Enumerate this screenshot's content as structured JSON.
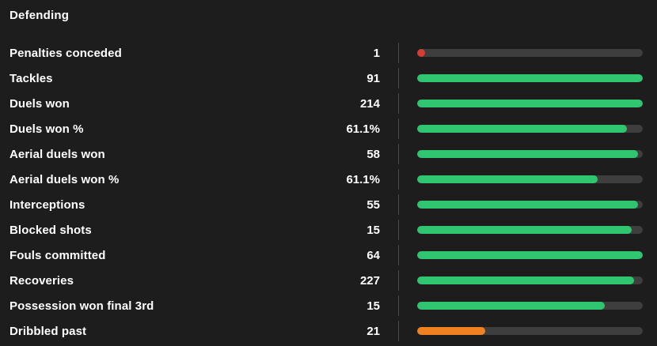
{
  "card": {
    "title": "Defending",
    "rows": [
      {
        "label": "Penalties conceded",
        "value": "1",
        "pct": 3.5,
        "color": "negative"
      },
      {
        "label": "Tackles",
        "value": "91",
        "pct": 100,
        "color": "positive"
      },
      {
        "label": "Duels won",
        "value": "214",
        "pct": 100,
        "color": "positive"
      },
      {
        "label": "Duels won %",
        "value": "61.1%",
        "pct": 93,
        "color": "positive"
      },
      {
        "label": "Aerial duels won",
        "value": "58",
        "pct": 98,
        "color": "positive"
      },
      {
        "label": "Aerial duels won %",
        "value": "61.1%",
        "pct": 80,
        "color": "positive"
      },
      {
        "label": "Interceptions",
        "value": "55",
        "pct": 98,
        "color": "positive"
      },
      {
        "label": "Blocked shots",
        "value": "15",
        "pct": 95,
        "color": "positive"
      },
      {
        "label": "Fouls committed",
        "value": "64",
        "pct": 100,
        "color": "positive"
      },
      {
        "label": "Recoveries",
        "value": "227",
        "pct": 96,
        "color": "positive"
      },
      {
        "label": "Possession won final 3rd",
        "value": "15",
        "pct": 83,
        "color": "positive"
      },
      {
        "label": "Dribbled past",
        "value": "21",
        "pct": 30,
        "color": "warning"
      }
    ]
  },
  "colors": {
    "positive": "#30c56f",
    "warning": "#ef8122",
    "negative": "#d63d33",
    "track": "#3e3e3e",
    "background": "#1d1d1d"
  }
}
